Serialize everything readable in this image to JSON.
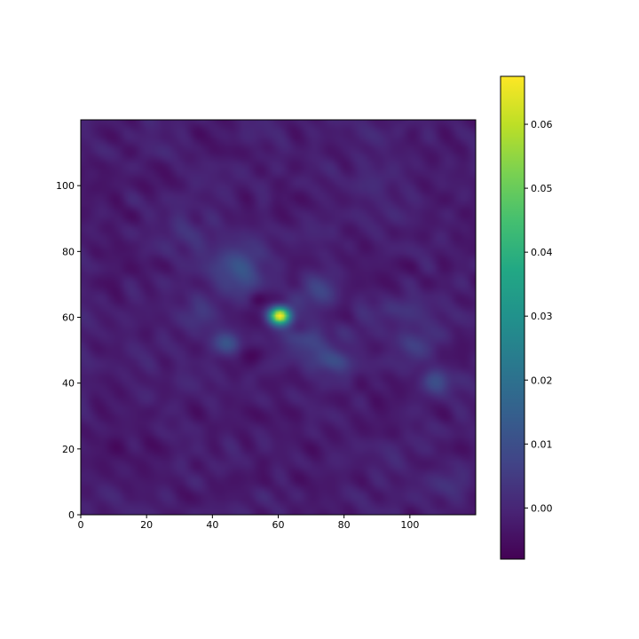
{
  "chart_data": {
    "type": "heatmap",
    "title": "",
    "xlabel": "",
    "ylabel": "",
    "grid": false,
    "colormap": "viridis",
    "origin": "lower",
    "x_range": [
      0,
      120
    ],
    "y_range": [
      0,
      120
    ],
    "x_ticks": [
      0,
      20,
      40,
      60,
      80,
      100
    ],
    "x_tick_labels": [
      "0",
      "20",
      "40",
      "60",
      "80",
      "100"
    ],
    "y_ticks": [
      0,
      20,
      40,
      60,
      80,
      100
    ],
    "y_tick_labels": [
      "0",
      "20",
      "40",
      "60",
      "80",
      "100"
    ],
    "colorbar": {
      "min": -0.008,
      "max": 0.0675,
      "ticks": [
        0.0,
        0.01,
        0.02,
        0.03,
        0.04,
        0.05,
        0.06
      ],
      "tick_labels": [
        "0.00",
        "0.01",
        "0.02",
        "0.03",
        "0.04",
        "0.05",
        "0.06"
      ],
      "placement": "right"
    },
    "background_level": -0.002,
    "peak": {
      "x": 60,
      "y": 60,
      "value": 0.0675
    },
    "features": [
      {
        "x": 60,
        "y": 60,
        "sx": 2.2,
        "sy": 1.8,
        "value": 0.069
      },
      {
        "x": 47,
        "y": 74,
        "sx": 5.5,
        "sy": 6.0,
        "value": 0.014
      },
      {
        "x": 72,
        "y": 68,
        "sx": 4.5,
        "sy": 4.0,
        "value": 0.01
      },
      {
        "x": 44,
        "y": 52,
        "sx": 3.0,
        "sy": 2.5,
        "value": 0.013
      },
      {
        "x": 36,
        "y": 60,
        "sx": 4.0,
        "sy": 3.0,
        "value": 0.006
      },
      {
        "x": 68,
        "y": 52,
        "sx": 6.0,
        "sy": 4.5,
        "value": 0.01
      },
      {
        "x": 76,
        "y": 46,
        "sx": 4.0,
        "sy": 2.5,
        "value": 0.01
      },
      {
        "x": 53,
        "y": 65,
        "sx": 2.0,
        "sy": 1.6,
        "value": -0.006
      },
      {
        "x": 66,
        "y": 56,
        "sx": 2.2,
        "sy": 1.6,
        "value": -0.005
      },
      {
        "x": 50,
        "y": 48,
        "sx": 4.0,
        "sy": 2.0,
        "value": -0.004
      },
      {
        "x": 100,
        "y": 52,
        "sx": 5.0,
        "sy": 4.0,
        "value": 0.007
      },
      {
        "x": 108,
        "y": 40,
        "sx": 3.0,
        "sy": 3.0,
        "value": 0.012
      },
      {
        "x": 95,
        "y": 62,
        "sx": 6.0,
        "sy": 2.0,
        "value": 0.004
      },
      {
        "x": 112,
        "y": 8,
        "sx": 4.0,
        "sy": 3.0,
        "value": 0.005
      },
      {
        "x": 30,
        "y": 85,
        "sx": 5.0,
        "sy": 5.0,
        "value": 0.003
      },
      {
        "x": 10,
        "y": 20,
        "sx": 8.0,
        "sy": 6.0,
        "value": -0.002
      },
      {
        "x": 85,
        "y": 100,
        "sx": 8.0,
        "sy": 6.0,
        "value": 0.002
      }
    ],
    "noise_amplitude": 0.0025
  }
}
